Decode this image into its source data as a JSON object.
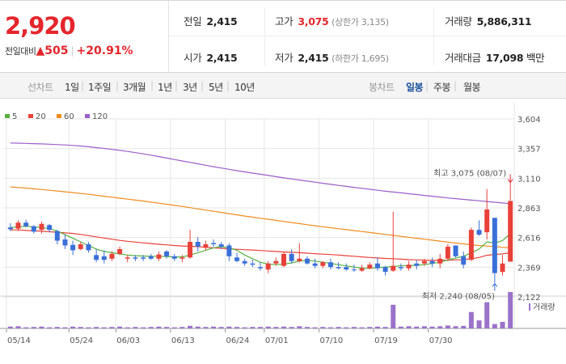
{
  "quote": {
    "price": "2,920",
    "change_label": "전일대비",
    "change_arrow": "▲",
    "change_value": "505",
    "change_pct": "+20.91%",
    "prev_close_label": "전일",
    "prev_close": "2,415",
    "open_label": "시가",
    "open": "2,415",
    "high_label": "고가",
    "high": "3,075",
    "upper_limit_label": "(상한가 3,135)",
    "low_label": "저가",
    "low": "2,415",
    "lower_limit_label": "(하한가 1,695)",
    "volume_label": "거래량",
    "volume": "5,886,311",
    "amount_label": "거래대금",
    "amount": "17,098",
    "amount_unit": "백만",
    "up_color": "#e4262c"
  },
  "tabs": {
    "line_label": "선차트",
    "line_periods": [
      "1일",
      "1주일",
      "3개월",
      "1년",
      "3년",
      "5년",
      "10년"
    ],
    "candle_label": "봉차트",
    "candle_periods": [
      "일봉",
      "주봉",
      "월봉"
    ],
    "candle_selected": "일봉"
  },
  "chart_data": {
    "type": "candlestick",
    "legend": [
      {
        "name": "5",
        "color": "#56b13f"
      },
      {
        "name": "20",
        "color": "#e8413a"
      },
      {
        "name": "60",
        "color": "#f08c1e"
      },
      {
        "name": "120",
        "color": "#9b5ec9"
      }
    ],
    "y_ticks": [
      2122,
      2369,
      2616,
      2863,
      3110,
      3357,
      3604
    ],
    "y_tick_labels": [
      "2,122",
      "2,369",
      "2,616",
      "2,863",
      "3,110",
      "3,357",
      "3,604"
    ],
    "ylim": [
      2122,
      3604
    ],
    "x_tick_labels": [
      {
        "label": "05/14",
        "index": 0
      },
      {
        "label": "05/24",
        "index": 8
      },
      {
        "label": "06/03",
        "index": 14
      },
      {
        "label": "06/13",
        "index": 21
      },
      {
        "label": "06/24",
        "index": 28
      },
      {
        "label": "07/01",
        "index": 33
      },
      {
        "label": "07/10",
        "index": 40
      },
      {
        "label": "07/19",
        "index": 47
      },
      {
        "label": "07/30",
        "index": 54
      }
    ],
    "candles": [
      [
        2700,
        2735,
        2670,
        2685
      ],
      [
        2690,
        2760,
        2670,
        2740
      ],
      [
        2740,
        2765,
        2700,
        2710
      ],
      [
        2710,
        2720,
        2650,
        2665
      ],
      [
        2680,
        2750,
        2650,
        2730
      ],
      [
        2720,
        2730,
        2660,
        2680
      ],
      [
        2670,
        2680,
        2560,
        2590
      ],
      [
        2600,
        2640,
        2520,
        2550
      ],
      [
        2555,
        2590,
        2470,
        2510
      ],
      [
        2520,
        2580,
        2510,
        2560
      ],
      [
        2560,
        2580,
        2490,
        2510
      ],
      [
        2470,
        2520,
        2410,
        2430
      ],
      [
        2460,
        2510,
        2400,
        2430
      ],
      [
        2440,
        2500,
        2420,
        2480
      ],
      [
        2480,
        2540,
        2470,
        2520
      ],
      [
        2440,
        2470,
        2410,
        2450
      ],
      [
        2450,
        2470,
        2420,
        2440
      ],
      [
        2450,
        2470,
        2420,
        2440
      ],
      [
        2460,
        2480,
        2430,
        2440
      ],
      [
        2440,
        2500,
        2420,
        2475
      ],
      [
        2500,
        2510,
        2440,
        2460
      ],
      [
        2460,
        2480,
        2420,
        2440
      ],
      [
        2440,
        2470,
        2410,
        2450
      ],
      [
        2450,
        2680,
        2440,
        2580
      ],
      [
        2580,
        2620,
        2500,
        2540
      ],
      [
        2530,
        2590,
        2510,
        2560
      ],
      [
        2570,
        2600,
        2540,
        2560
      ],
      [
        2560,
        2580,
        2520,
        2540
      ],
      [
        2550,
        2570,
        2420,
        2460
      ],
      [
        2450,
        2490,
        2410,
        2420
      ],
      [
        2420,
        2440,
        2380,
        2400
      ],
      [
        2400,
        2430,
        2370,
        2390
      ],
      [
        2370,
        2410,
        2340,
        2360
      ],
      [
        2350,
        2420,
        2320,
        2400
      ],
      [
        2400,
        2450,
        2380,
        2420
      ],
      [
        2380,
        2500,
        2370,
        2480
      ],
      [
        2480,
        2520,
        2400,
        2420
      ],
      [
        2420,
        2570,
        2410,
        2440
      ],
      [
        2440,
        2460,
        2390,
        2400
      ],
      [
        2400,
        2440,
        2360,
        2380
      ],
      [
        2380,
        2420,
        2360,
        2410
      ],
      [
        2410,
        2440,
        2350,
        2370
      ],
      [
        2370,
        2410,
        2350,
        2360
      ],
      [
        2370,
        2400,
        2340,
        2350
      ],
      [
        2350,
        2390,
        2330,
        2345
      ],
      [
        2340,
        2390,
        2330,
        2360
      ],
      [
        2360,
        2410,
        2350,
        2390
      ],
      [
        2400,
        2450,
        2340,
        2360
      ],
      [
        2370,
        2380,
        2300,
        2330
      ],
      [
        2340,
        2830,
        2330,
        2380
      ],
      [
        2370,
        2400,
        2340,
        2360
      ],
      [
        2360,
        2420,
        2340,
        2390
      ],
      [
        2400,
        2430,
        2350,
        2380
      ],
      [
        2400,
        2440,
        2380,
        2420
      ],
      [
        2420,
        2450,
        2370,
        2400
      ],
      [
        2400,
        2480,
        2360,
        2440
      ],
      [
        2440,
        2560,
        2420,
        2540
      ],
      [
        2550,
        2550,
        2450,
        2460
      ],
      [
        2460,
        2500,
        2360,
        2390
      ],
      [
        2430,
        2700,
        2420,
        2680
      ],
      [
        2680,
        2760,
        2630,
        2640
      ],
      [
        2660,
        3020,
        2600,
        2850
      ],
      [
        2780,
        2780,
        2240,
        2320
      ],
      [
        2330,
        2470,
        2300,
        2400
      ],
      [
        2415,
        3075,
        2415,
        2920
      ]
    ],
    "high_annotation": {
      "label": "최고 3,075 (08/07)",
      "value": 3075,
      "index": 64
    },
    "low_annotation": {
      "label": "최저 2,240 (08/05)",
      "value": 2240,
      "index": 62
    },
    "volume_label": "거래량",
    "volumes": [
      0.05,
      0.06,
      0.03,
      0.04,
      0.05,
      0.03,
      0.04,
      0.03,
      0.05,
      0.04,
      0.03,
      0.04,
      0.03,
      0.04,
      0.05,
      0.03,
      0.04,
      0.03,
      0.04,
      0.05,
      0.04,
      0.03,
      0.04,
      0.07,
      0.05,
      0.04,
      0.05,
      0.04,
      0.05,
      0.04,
      0.03,
      0.04,
      0.04,
      0.05,
      0.04,
      0.05,
      0.04,
      0.06,
      0.04,
      0.03,
      0.04,
      0.03,
      0.04,
      0.03,
      0.04,
      0.03,
      0.04,
      0.05,
      0.04,
      0.65,
      0.05,
      0.06,
      0.05,
      0.06,
      0.05,
      0.06,
      0.08,
      0.06,
      0.07,
      0.45,
      0.22,
      0.72,
      0.12,
      0.18,
      1.0
    ],
    "ma": {
      "5": [
        2700,
        2705,
        2710,
        2705,
        2700,
        2690,
        2670,
        2640,
        2610,
        2580,
        2550,
        2520,
        2500,
        2490,
        2480,
        2470,
        2465,
        2462,
        2460,
        2460,
        2458,
        2455,
        2455,
        2470,
        2490,
        2510,
        2530,
        2540,
        2530,
        2510,
        2470,
        2440,
        2410,
        2395,
        2390,
        2395,
        2405,
        2420,
        2425,
        2420,
        2410,
        2400,
        2390,
        2380,
        2370,
        2362,
        2360,
        2365,
        2370,
        2375,
        2380,
        2383,
        2385,
        2390,
        2400,
        2410,
        2430,
        2445,
        2460,
        2490,
        2520,
        2580,
        2570,
        2590,
        2650
      ],
      "20": [
        2680,
        2680,
        2675,
        2672,
        2668,
        2664,
        2660,
        2655,
        2650,
        2642,
        2632,
        2622,
        2612,
        2602,
        2592,
        2585,
        2578,
        2572,
        2566,
        2560,
        2555,
        2550,
        2546,
        2543,
        2540,
        2535,
        2530,
        2526,
        2522,
        2518,
        2515,
        2512,
        2508,
        2504,
        2500,
        2496,
        2493,
        2490,
        2486,
        2482,
        2478,
        2474,
        2470,
        2465,
        2460,
        2455,
        2450,
        2446,
        2442,
        2440,
        2436,
        2432,
        2430,
        2428,
        2426,
        2426,
        2428,
        2430,
        2432,
        2440,
        2450,
        2468,
        2475,
        2480,
        2490
      ],
      "60": [
        3038,
        3033,
        3028,
        3022,
        3016,
        3010,
        3004,
        2997,
        2990,
        2983,
        2976,
        2968,
        2960,
        2952,
        2944,
        2936,
        2928,
        2920,
        2911,
        2902,
        2893,
        2884,
        2875,
        2865,
        2855,
        2845,
        2835,
        2825,
        2815,
        2805,
        2795,
        2786,
        2777,
        2768,
        2759,
        2750,
        2741,
        2732,
        2723,
        2714,
        2706,
        2698,
        2690,
        2682,
        2674,
        2666,
        2658,
        2650,
        2642,
        2634,
        2626,
        2618,
        2610,
        2602,
        2594,
        2586,
        2578,
        2570,
        2563,
        2556,
        2550,
        2545,
        2540,
        2535,
        2530
      ],
      "120": [
        3403,
        3402,
        3400,
        3398,
        3396,
        3393,
        3390,
        3387,
        3383,
        3378,
        3372,
        3365,
        3358,
        3350,
        3342,
        3333,
        3323,
        3313,
        3302,
        3290,
        3278,
        3266,
        3254,
        3242,
        3230,
        3218,
        3206,
        3195,
        3184,
        3173,
        3163,
        3153,
        3143,
        3133,
        3123,
        3113,
        3104,
        3095,
        3086,
        3077,
        3068,
        3059,
        3050,
        3042,
        3034,
        3026,
        3018,
        3010,
        3002,
        2995,
        2988,
        2981,
        2974,
        2967,
        2960,
        2953,
        2946,
        2940,
        2934,
        2928,
        2922,
        2916,
        2910,
        2904,
        2898
      ]
    },
    "colors": {
      "up": "#e8413a",
      "down": "#3a6fd8",
      "volume": "#9b72c9",
      "grid": "#e6e6e6"
    }
  }
}
